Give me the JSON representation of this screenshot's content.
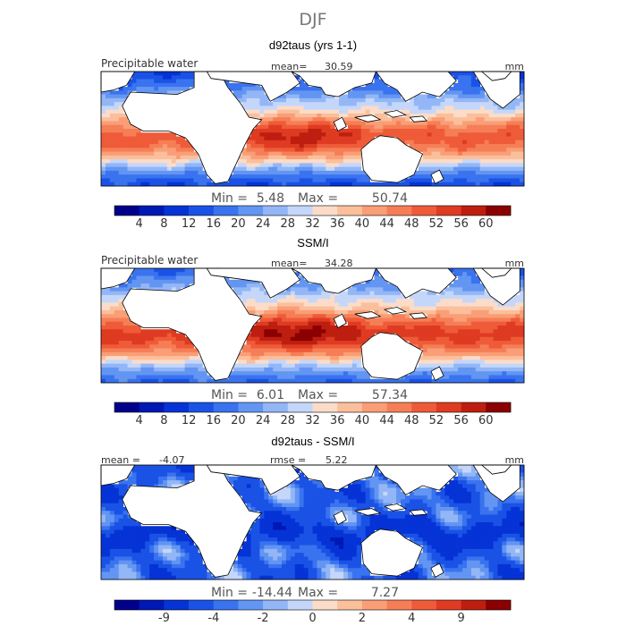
{
  "figure": {
    "season": "DJF"
  },
  "chart_data": [
    {
      "type": "heatmap",
      "title": "d92taus (yrs 1-1)",
      "field_label": "Precipitable water",
      "stats_label": "mean=",
      "stats_value": "30.59",
      "units": "mm",
      "min_label": "Min =",
      "min_value": "5.48",
      "max_label": "Max =",
      "max_value": "50.74",
      "colorbar_ticks": [
        "4",
        "8",
        "12",
        "16",
        "20",
        "24",
        "28",
        "32",
        "36",
        "40",
        "44",
        "48",
        "52",
        "56",
        "60"
      ],
      "colorbar_levels": [
        0,
        4,
        8,
        12,
        16,
        20,
        24,
        28,
        32,
        36,
        40,
        44,
        48,
        52,
        56,
        60,
        64
      ]
    },
    {
      "type": "heatmap",
      "title": "SSM/I",
      "field_label": "Precipitable water",
      "stats_label": "mean=",
      "stats_value": "34.28",
      "units": "mm",
      "min_label": "Min =",
      "min_value": "6.01",
      "max_label": "Max =",
      "max_value": "57.34",
      "colorbar_ticks": [
        "4",
        "8",
        "12",
        "16",
        "20",
        "24",
        "28",
        "32",
        "36",
        "40",
        "44",
        "48",
        "52",
        "56",
        "60"
      ],
      "colorbar_levels": [
        0,
        4,
        8,
        12,
        16,
        20,
        24,
        28,
        32,
        36,
        40,
        44,
        48,
        52,
        56,
        60,
        64
      ]
    },
    {
      "type": "heatmap",
      "title": "d92taus - SSM/I",
      "left_label": "mean =",
      "left_value": "-4.07",
      "stats_label": "rmse =",
      "stats_value": "5.22",
      "units": "mm",
      "min_label": "Min =",
      "min_value": "-14.44",
      "max_label": "Max =",
      "max_value": "7.27",
      "colorbar_ticks": [
        "-9",
        "-4",
        "-2",
        "0",
        "2",
        "4",
        "9"
      ],
      "colorbar_tick_boundaries": [
        2,
        4,
        6,
        8,
        10,
        12,
        14
      ],
      "colorbar_levels": 16
    }
  ],
  "colors": {
    "scale": [
      "#00008b",
      "#0018b4",
      "#0533d6",
      "#1a52e6",
      "#3a73ef",
      "#6395f2",
      "#93b6f6",
      "#c4d7fa",
      "#fbdcc9",
      "#fbbf9c",
      "#f99e76",
      "#f67e56",
      "#ef5b38",
      "#de3b22",
      "#bd1e10",
      "#8b0000"
    ],
    "land": "#ffffff",
    "coast": "#000000"
  }
}
